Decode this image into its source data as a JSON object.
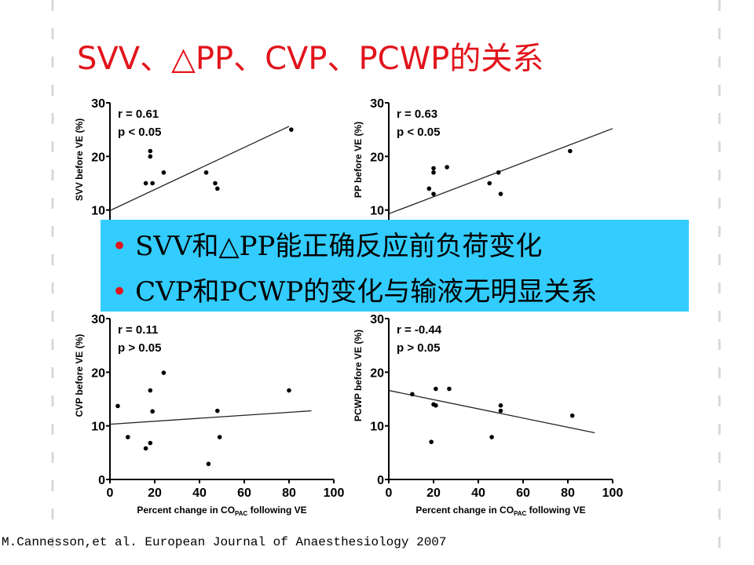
{
  "title": "SVV、△PP、CVP、PCWP的关系",
  "bullets": [
    "SVV和△PP能正确反应前负荷变化",
    "CVP和PCWP的变化与输液无明显关系"
  ],
  "citation": "M.Cannesson,et al. European Journal of Anaesthesiology 2007",
  "chart_data": [
    {
      "type": "scatter",
      "ylabel": "SVV before VE (%)",
      "annotations": [
        "r = 0.61",
        "p < 0.05"
      ],
      "x": [
        81,
        18,
        18,
        16,
        19,
        24,
        43,
        47,
        48
      ],
      "values": [
        25,
        21,
        20,
        15,
        15,
        17,
        17,
        15,
        14
      ],
      "trend": {
        "x": [
          0,
          80
        ],
        "values": [
          9.9,
          25.6
        ]
      },
      "xlim": [
        0,
        100
      ],
      "ylim": [
        0,
        30
      ],
      "yticks": [
        10,
        20,
        30
      ],
      "color": "#000000"
    },
    {
      "type": "scatter",
      "ylabel": "PP before VE (%)",
      "annotations": [
        "r = 0.63",
        "p < 0.05"
      ],
      "x": [
        81,
        20,
        20,
        26,
        49,
        18,
        20,
        45,
        50
      ],
      "values": [
        21,
        17.8,
        17,
        18,
        17,
        14,
        13,
        15,
        13
      ],
      "trend": {
        "x": [
          0,
          100
        ],
        "values": [
          9.3,
          25.2
        ]
      },
      "xlim": [
        0,
        100
      ],
      "ylim": [
        0,
        30
      ],
      "yticks": [
        10,
        20,
        30
      ],
      "color": "#000000"
    },
    {
      "type": "scatter",
      "ylabel": "CVP before VE (%)",
      "annotations": [
        "r = 0.11",
        "p > 0.05"
      ],
      "xlabel": [
        "Percent change in CO",
        "PAC",
        " following VE"
      ],
      "x": [
        3.5,
        8,
        16,
        18,
        18,
        19,
        24,
        48,
        49,
        44,
        80
      ],
      "values": [
        13.7,
        7.9,
        5.8,
        6.8,
        16.6,
        12.7,
        19.9,
        12.8,
        7.9,
        2.9,
        16.6
      ],
      "trend": {
        "x": [
          0,
          90
        ],
        "values": [
          10.3,
          12.8
        ]
      },
      "xlim": [
        0,
        100
      ],
      "ylim": [
        0,
        30
      ],
      "xticks": [
        0,
        20,
        40,
        60,
        80,
        100
      ],
      "yticks": [
        0,
        10,
        20,
        30
      ],
      "color": "#000000"
    },
    {
      "type": "scatter",
      "ylabel": "PCWP before VE (%)",
      "annotations": [
        "r = -0.44",
        "p > 0.05"
      ],
      "xlabel": [
        "Percent change in CO",
        "PAC",
        " following VE"
      ],
      "x": [
        10.5,
        20,
        21,
        21,
        27,
        19,
        46,
        50,
        50,
        82
      ],
      "values": [
        15.9,
        14,
        13.8,
        16.9,
        16.9,
        7,
        7.9,
        13.8,
        12.8,
        11.9
      ],
      "trend": {
        "x": [
          0,
          92
        ],
        "values": [
          16.6,
          8.7
        ]
      },
      "xlim": [
        0,
        100
      ],
      "ylim": [
        0,
        30
      ],
      "xticks": [
        0,
        20,
        40,
        60,
        80,
        100
      ],
      "yticks": [
        0,
        10,
        20,
        30
      ],
      "color": "#000000"
    }
  ]
}
